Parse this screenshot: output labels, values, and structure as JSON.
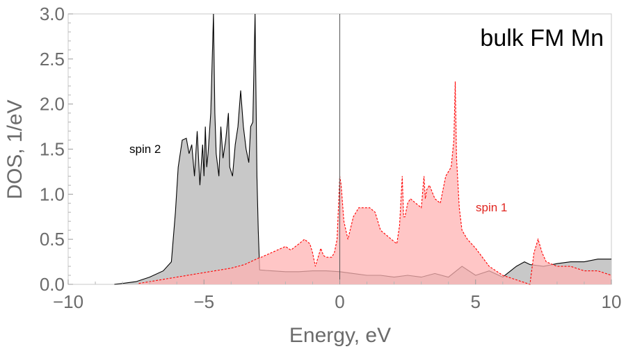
{
  "chart_data": {
    "type": "area",
    "title": "bulk FM Mn",
    "xlabel": "Energy, eV",
    "ylabel": "DOS, 1/eV",
    "xlim": [
      -10,
      10
    ],
    "ylim": [
      0,
      3.0
    ],
    "xticks": [
      -10,
      -5,
      0,
      5,
      10
    ],
    "xtick_labels": [
      "−10",
      "−5",
      "0",
      "5",
      "10"
    ],
    "yticks": [
      0,
      0.5,
      1,
      1.5,
      2,
      2.5,
      3
    ],
    "ytick_labels": [
      "0.0",
      "0.5",
      "1.0",
      "1.5",
      "2.0",
      "2.5",
      "3.0"
    ],
    "grid": false,
    "fermi_level_line": 0,
    "series": [
      {
        "name": "spin 1",
        "color": "#ff0000",
        "fill": "#ffb3b3",
        "dashed": true,
        "x": [
          -7.4,
          -7.0,
          -6.0,
          -5.0,
          -4.0,
          -3.5,
          -3.0,
          -2.9,
          -2.6,
          -2.3,
          -2.0,
          -1.8,
          -1.5,
          -1.3,
          -1.1,
          -1.0,
          -0.9,
          -0.8,
          -0.7,
          -0.6,
          -0.5,
          -0.4,
          -0.3,
          -0.2,
          -0.1,
          0.0,
          0.05,
          0.15,
          0.3,
          0.5,
          0.7,
          0.9,
          1.1,
          1.3,
          1.5,
          1.7,
          1.9,
          2.1,
          2.2,
          2.3,
          2.35,
          2.4,
          2.5,
          2.6,
          2.8,
          3.0,
          3.1,
          3.15,
          3.2,
          3.3,
          3.5,
          3.7,
          3.9,
          4.1,
          4.2,
          4.25,
          4.3,
          4.4,
          4.5,
          4.7,
          5.0,
          5.5,
          6.0,
          6.5,
          7.0,
          7.15,
          7.3,
          7.45,
          7.6,
          8.0,
          8.5,
          9.0,
          9.5,
          10.0
        ],
        "y": [
          0.01,
          0.03,
          0.08,
          0.13,
          0.18,
          0.22,
          0.29,
          0.3,
          0.34,
          0.38,
          0.42,
          0.38,
          0.45,
          0.5,
          0.45,
          0.35,
          0.2,
          0.3,
          0.4,
          0.32,
          0.3,
          0.3,
          0.3,
          0.35,
          0.5,
          1.2,
          1.1,
          0.7,
          0.5,
          0.75,
          0.85,
          0.85,
          0.85,
          0.8,
          0.6,
          0.55,
          0.5,
          0.45,
          0.65,
          1.2,
          0.75,
          0.75,
          0.9,
          0.95,
          0.9,
          0.85,
          1.2,
          0.95,
          1.05,
          1.1,
          0.95,
          0.9,
          1.2,
          1.3,
          1.6,
          2.25,
          1.4,
          0.85,
          0.6,
          0.5,
          0.4,
          0.2,
          0.1,
          0.05,
          0.0,
          0.35,
          0.5,
          0.35,
          0.25,
          0.2,
          0.2,
          0.15,
          0.15,
          0.1
        ]
      },
      {
        "name": "spin 2",
        "color": "#000000",
        "fill": "#c8c8c8",
        "dashed": false,
        "x": [
          -8.3,
          -8.0,
          -7.5,
          -7.0,
          -6.5,
          -6.2,
          -6.05,
          -5.95,
          -5.8,
          -5.65,
          -5.55,
          -5.45,
          -5.35,
          -5.25,
          -5.15,
          -5.05,
          -5.0,
          -4.95,
          -4.9,
          -4.85,
          -4.75,
          -4.65,
          -4.6,
          -4.55,
          -4.45,
          -4.38,
          -4.3,
          -4.2,
          -4.1,
          -4.05,
          -3.95,
          -3.85,
          -3.75,
          -3.65,
          -3.55,
          -3.45,
          -3.35,
          -3.28,
          -3.2,
          -3.12,
          -3.05,
          -3.0,
          -2.95,
          -2.5,
          -2.0,
          -1.5,
          -1.0,
          -0.5,
          0.0,
          0.5,
          1.0,
          1.5,
          2.0,
          2.5,
          3.0,
          3.5,
          4.0,
          4.5,
          5.0,
          5.5,
          6.0,
          6.5,
          6.8,
          7.0,
          7.5,
          8.0,
          8.5,
          9.0,
          9.5,
          10.0
        ],
        "y": [
          0.0,
          0.01,
          0.03,
          0.08,
          0.15,
          0.25,
          0.8,
          1.3,
          1.6,
          1.62,
          1.45,
          1.55,
          1.2,
          1.7,
          1.1,
          1.55,
          1.2,
          1.75,
          1.3,
          1.45,
          1.9,
          3.0,
          1.9,
          1.45,
          1.2,
          1.75,
          1.4,
          1.6,
          1.9,
          1.3,
          1.2,
          1.55,
          1.75,
          2.15,
          1.75,
          1.5,
          1.35,
          1.75,
          1.8,
          3.0,
          1.2,
          0.6,
          0.16,
          0.15,
          0.14,
          0.14,
          0.15,
          0.15,
          0.14,
          0.12,
          0.1,
          0.1,
          0.08,
          0.1,
          0.08,
          0.12,
          0.08,
          0.2,
          0.1,
          0.15,
          0.08,
          0.2,
          0.25,
          0.22,
          0.2,
          0.23,
          0.25,
          0.25,
          0.28,
          0.28
        ]
      }
    ]
  }
}
